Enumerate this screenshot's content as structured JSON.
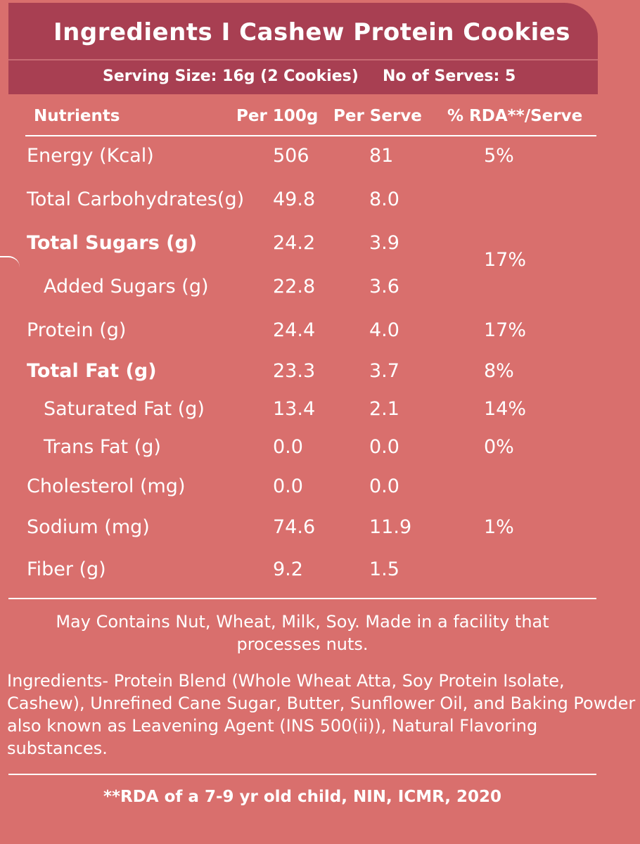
{
  "header": {
    "title": "Ingredients I  Cashew Protein Cookies",
    "serving_size": "Serving Size: 16g (2 Cookies)",
    "no_of_serves": "No of Serves: 5"
  },
  "table": {
    "columns": [
      "Nutrients",
      "Per 100g",
      "Per Serve",
      "% RDA**/Serve"
    ],
    "rows": [
      {
        "name": "Energy (Kcal)",
        "per_100g": "506",
        "per_serve": "81",
        "rda": "5%"
      },
      {
        "name": "Total Carbohydrates(g)",
        "per_100g": "49.8",
        "per_serve": "8.0",
        "rda": ""
      },
      {
        "name": "Total Sugars (g)",
        "per_100g": "24.2",
        "per_serve": "3.9",
        "rda": ""
      },
      {
        "name": "Added Sugars (g)",
        "per_100g": "22.8",
        "per_serve": "3.6",
        "rda": ""
      },
      {
        "name": "Protein (g)",
        "per_100g": "24.4",
        "per_serve": "4.0",
        "rda": "17%"
      },
      {
        "name": "Total Fat (g)",
        "per_100g": "23.3",
        "per_serve": "3.7",
        "rda": "8%"
      },
      {
        "name": "Saturated Fat (g)",
        "per_100g": "13.4",
        "per_serve": "2.1",
        "rda": "14%"
      },
      {
        "name": "Trans Fat (g)",
        "per_100g": "0.0",
        "per_serve": "0.0",
        "rda": "0%"
      },
      {
        "name": "Cholesterol (mg)",
        "per_100g": "0.0",
        "per_serve": "0.0",
        "rda": ""
      },
      {
        "name": "Sodium (mg)",
        "per_100g": "74.6",
        "per_serve": "11.9",
        "rda": "1%"
      },
      {
        "name": "Fiber (g)",
        "per_100g": "9.2",
        "per_serve": "1.5",
        "rda": ""
      }
    ],
    "sugars_rda": "17%"
  },
  "allergen_note": "May Contains Nut, Wheat, Milk, Soy. Made in a facility that processes nuts.",
  "ingredients_text": "Ingredients- Protein Blend (Whole Wheat Atta, Soy Protein Isolate, Cashew), Unrefined Cane Sugar,  Butter, Sunflower Oil, and Baking Powder also known as Leavening Agent (INS 500(ii)), Natural Flavoring substances.",
  "footnote": "**RDA of a 7-9 yr old child, NIN, ICMR, 2020",
  "colors": {
    "background": "#d96f6d",
    "header_band": "#a83f52",
    "text": "#ffffff"
  }
}
